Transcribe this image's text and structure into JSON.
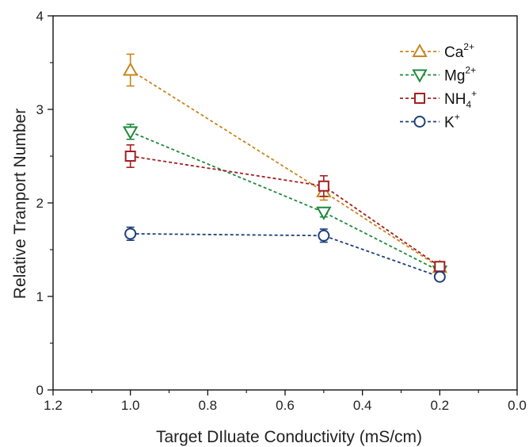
{
  "chart_data": {
    "type": "line",
    "title": "",
    "xlabel": "Target DIluate Conductivity (mS/cm)",
    "ylabel": "Relative Tranport Number",
    "xlim": [
      1.2,
      0.0
    ],
    "ylim": [
      0,
      4
    ],
    "x_reversed": true,
    "x_ticks": [
      "1.2",
      "1.0",
      "0.8",
      "0.6",
      "0.4",
      "0.2",
      "0.0"
    ],
    "y_ticks": [
      "0",
      "1",
      "2",
      "3",
      "4"
    ],
    "grid": false,
    "legend_position": "top-right",
    "x": [
      1.0,
      0.5,
      0.2
    ],
    "series": [
      {
        "name": "Ca",
        "sup": "2+",
        "sub": "",
        "color": "#c8861e",
        "marker": "triangle-up",
        "values": [
          3.42,
          2.12,
          1.31
        ],
        "errors": [
          0.17,
          0.09,
          0.04
        ]
      },
      {
        "name": "Mg",
        "sup": "2+",
        "sub": "",
        "color": "#1e8a3c",
        "marker": "triangle-down",
        "values": [
          2.76,
          1.9,
          1.27
        ],
        "errors": [
          0.08,
          0.05,
          0.03
        ]
      },
      {
        "name": "NH",
        "sup": "+",
        "sub": "4",
        "color": "#a32020",
        "marker": "square",
        "values": [
          2.5,
          2.18,
          1.32
        ],
        "errors": [
          0.12,
          0.11,
          0.04
        ]
      },
      {
        "name": "K",
        "sup": "+",
        "sub": "",
        "color": "#1f3f7a",
        "marker": "circle",
        "values": [
          1.67,
          1.65,
          1.21
        ],
        "errors": [
          0.07,
          0.07,
          0.04
        ]
      }
    ]
  }
}
